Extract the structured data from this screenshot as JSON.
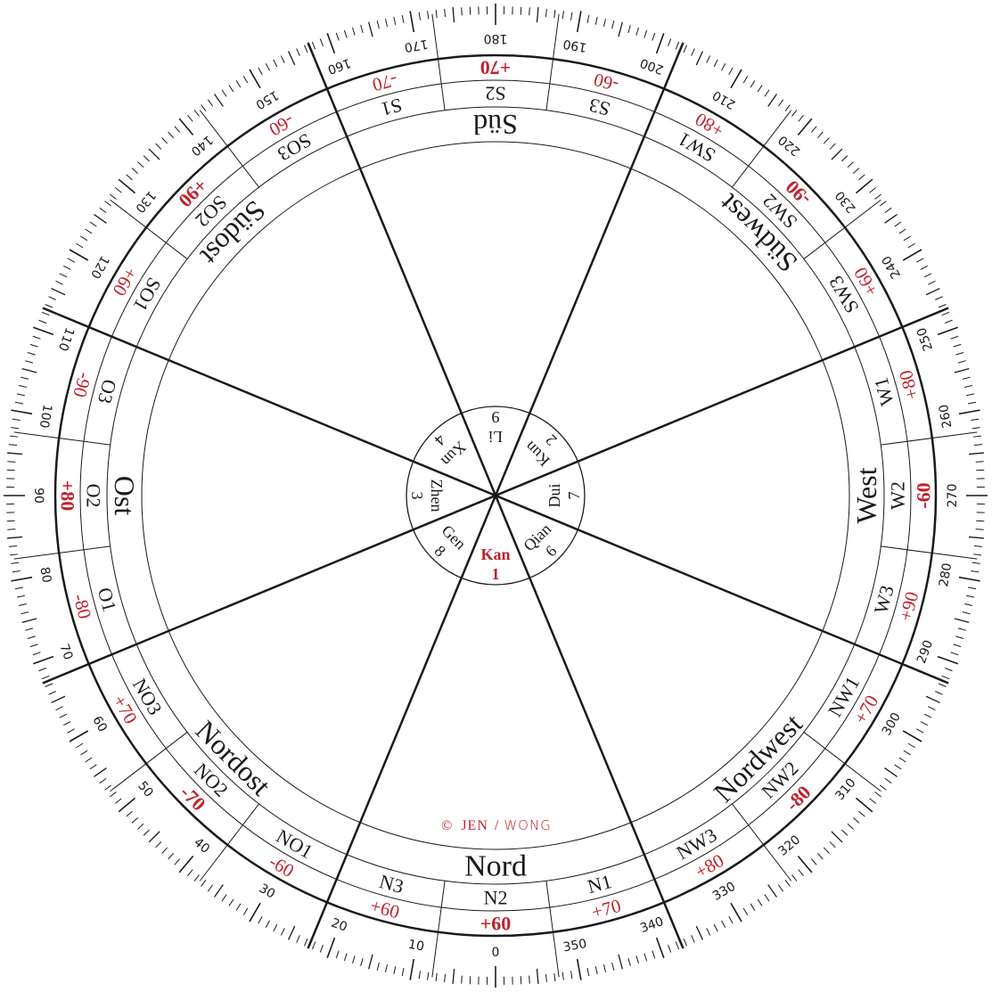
{
  "colors": {
    "ink": "#1a1a1a",
    "accent_red": "#c0202a"
  },
  "directions": [
    {
      "label": "Nord",
      "deg": 0
    },
    {
      "label": "Nordost",
      "deg": 45
    },
    {
      "label": "Ost",
      "deg": 90
    },
    {
      "label": "Südost",
      "deg": 135
    },
    {
      "label": "Süd",
      "deg": 180
    },
    {
      "label": "Südwest",
      "deg": 225
    },
    {
      "label": "West",
      "deg": 270
    },
    {
      "label": "Nordwest",
      "deg": 315
    }
  ],
  "mountains": [
    {
      "label": "N2",
      "deg": 0,
      "value": "+60",
      "bold": true
    },
    {
      "label": "N3",
      "deg": 15,
      "value": "+60",
      "bold": false
    },
    {
      "label": "NO1",
      "deg": 30,
      "value": "-60",
      "bold": false
    },
    {
      "label": "NO2",
      "deg": 45,
      "value": "-70",
      "bold": true
    },
    {
      "label": "NO3",
      "deg": 60,
      "value": "+70",
      "bold": false
    },
    {
      "label": "O1",
      "deg": 75,
      "value": "-80",
      "bold": false
    },
    {
      "label": "O2",
      "deg": 90,
      "value": "+80",
      "bold": true
    },
    {
      "label": "O3",
      "deg": 105,
      "value": "-90",
      "bold": false
    },
    {
      "label": "SO1",
      "deg": 120,
      "value": "+60",
      "bold": false
    },
    {
      "label": "SO2",
      "deg": 135,
      "value": "+90",
      "bold": true
    },
    {
      "label": "SO3",
      "deg": 150,
      "value": "-60",
      "bold": false
    },
    {
      "label": "S1",
      "deg": 165,
      "value": "-70",
      "bold": false
    },
    {
      "label": "S2",
      "deg": 180,
      "value": "+70",
      "bold": true
    },
    {
      "label": "S3",
      "deg": 195,
      "value": "-60",
      "bold": false
    },
    {
      "label": "SW1",
      "deg": 210,
      "value": "+80",
      "bold": false
    },
    {
      "label": "SW2",
      "deg": 225,
      "value": "-90",
      "bold": true
    },
    {
      "label": "SW3",
      "deg": 240,
      "value": "+60",
      "bold": false
    },
    {
      "label": "W1",
      "deg": 255,
      "value": "+80",
      "bold": false
    },
    {
      "label": "W2",
      "deg": 270,
      "value": "-60",
      "bold": true
    },
    {
      "label": "W3",
      "deg": 285,
      "value": "+90",
      "bold": false
    },
    {
      "label": "NW1",
      "deg": 300,
      "value": "+70",
      "bold": false
    },
    {
      "label": "NW2",
      "deg": 315,
      "value": "-80",
      "bold": true
    },
    {
      "label": "NW3",
      "deg": 330,
      "value": "+80",
      "bold": false
    },
    {
      "label": "N1",
      "deg": 345,
      "value": "+70",
      "bold": false
    }
  ],
  "trigrams": [
    {
      "name": "Kan",
      "number": "1",
      "deg": 0,
      "highlight": true
    },
    {
      "name": "Gen",
      "number": "8",
      "deg": 45,
      "highlight": false
    },
    {
      "name": "Zhen",
      "number": "3",
      "deg": 90,
      "highlight": false
    },
    {
      "name": "Xun",
      "number": "4",
      "deg": 135,
      "highlight": false
    },
    {
      "name": "Li",
      "number": "9",
      "deg": 180,
      "highlight": false
    },
    {
      "name": "Kun",
      "number": "2",
      "deg": 225,
      "highlight": false
    },
    {
      "name": "Dui",
      "number": "7",
      "deg": 270,
      "highlight": false
    },
    {
      "name": "Qian",
      "number": "6",
      "deg": 315,
      "highlight": false
    }
  ],
  "degree_labels": [
    "0",
    "10",
    "20",
    "30",
    "40",
    "50",
    "60",
    "70",
    "80",
    "90",
    "100",
    "110",
    "120",
    "130",
    "140",
    "150",
    "160",
    "170",
    "180",
    "190",
    "200",
    "210",
    "220",
    "230",
    "240",
    "250",
    "260",
    "270",
    "280",
    "290",
    "300",
    "310",
    "320",
    "330",
    "340",
    "350"
  ],
  "watermark": {
    "symbol": "©",
    "part1": "JEN",
    "part2": "WONG"
  }
}
